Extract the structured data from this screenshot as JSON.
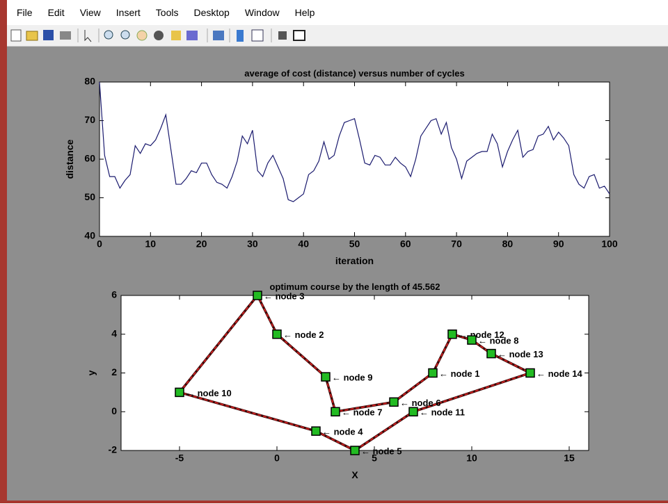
{
  "menu": [
    "File",
    "Edit",
    "View",
    "Insert",
    "Tools",
    "Desktop",
    "Window",
    "Help"
  ],
  "chart_data": [
    {
      "type": "line",
      "title": "average of cost (distance) versus number of cycles",
      "xlabel": "iteration",
      "ylabel": "distance",
      "x": [
        0,
        1,
        2,
        3,
        4,
        5,
        6,
        7,
        8,
        9,
        10,
        11,
        12,
        13,
        14,
        15,
        16,
        17,
        18,
        19,
        20,
        21,
        22,
        23,
        24,
        25,
        26,
        27,
        28,
        29,
        30,
        31,
        32,
        33,
        34,
        35,
        36,
        37,
        38,
        39,
        40,
        41,
        42,
        43,
        44,
        45,
        46,
        47,
        48,
        49,
        50,
        51,
        52,
        53,
        54,
        55,
        56,
        57,
        58,
        59,
        60,
        61,
        62,
        63,
        64,
        65,
        66,
        67,
        68,
        69,
        70,
        71,
        72,
        73,
        74,
        75,
        76,
        77,
        78,
        79,
        80,
        81,
        82,
        83,
        84,
        85,
        86,
        87,
        88,
        89,
        90,
        91,
        92,
        93,
        94,
        95,
        96,
        97,
        98,
        99,
        100
      ],
      "values": [
        80,
        61,
        55.5,
        55.5,
        52.5,
        54.5,
        56,
        63.5,
        61.5,
        64,
        63.5,
        65,
        68,
        71.5,
        62.5,
        53.5,
        53.5,
        55,
        57,
        56.5,
        59,
        59,
        56,
        54,
        53.5,
        52.5,
        55.5,
        59.5,
        66,
        64,
        67.5,
        57,
        55.5,
        59,
        61,
        58,
        55,
        49.5,
        49,
        50,
        51,
        56,
        57,
        59.5,
        64.5,
        60,
        61,
        66,
        69.5,
        70,
        70.5,
        65,
        59,
        58.5,
        61,
        60.5,
        58.5,
        58.5,
        60.5,
        59,
        58,
        55.5,
        60,
        66,
        68,
        70,
        70.5,
        66.5,
        69.5,
        63,
        60,
        55,
        59.5,
        60.5,
        61.5,
        62,
        62,
        66.5,
        64,
        58,
        62,
        65,
        67.5,
        60.5,
        62,
        62.5,
        66,
        66.5,
        68.5,
        65,
        67,
        65.5,
        63.5,
        56,
        53.5,
        52.5,
        55.5,
        56,
        52.5,
        53,
        51
      ],
      "color": "#1a1a6e",
      "xlim": [
        0,
        100
      ],
      "ylim": [
        40,
        80
      ],
      "xticks": [
        0,
        10,
        20,
        30,
        40,
        50,
        60,
        70,
        80,
        90,
        100
      ],
      "yticks": [
        40,
        50,
        60,
        70,
        80
      ]
    },
    {
      "type": "scatter",
      "title": "optimum course by the length of 45.562",
      "xlabel": "X",
      "ylabel": "y",
      "x": [
        -5,
        -1,
        0,
        2.5,
        3,
        6,
        8,
        9,
        10,
        11,
        13,
        7,
        4,
        2,
        -5
      ],
      "values": [
        1,
        6,
        4,
        1.8,
        0,
        0.5,
        2,
        4,
        3.7,
        3,
        2,
        0,
        -2,
        -1,
        1
      ],
      "labels": [
        "← node 10",
        "← node 3",
        "← node 2",
        "← node 9",
        "← node 7",
        "← node 6",
        "← node 1",
        "← node 12",
        "← node 8",
        "← node 13",
        "← node 14",
        "← node 11",
        "← node 5",
        "← node 4",
        null
      ],
      "color": "#cc1f1f",
      "marker_color": "#22bb22",
      "xlim": [
        -8,
        16
      ],
      "ylim": [
        -2,
        6
      ],
      "xticks": [
        -5,
        0,
        5,
        10,
        15
      ],
      "yticks": [
        -2,
        0,
        2,
        4,
        6
      ]
    }
  ]
}
